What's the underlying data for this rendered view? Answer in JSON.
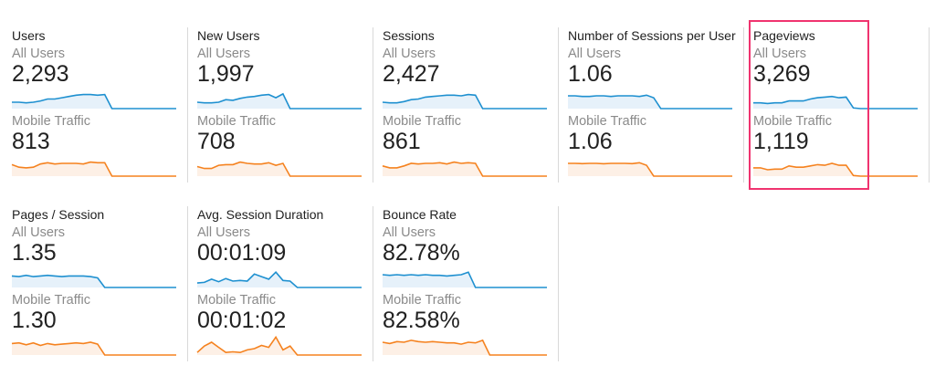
{
  "segments": {
    "all": "All Users",
    "mobile": "Mobile Traffic"
  },
  "colors": {
    "all_line": "#1e90d0",
    "all_fill": "#e6f1fa",
    "mobile_line": "#f5821f",
    "mobile_fill": "#fdf0e6",
    "highlight": "#f0336f"
  },
  "highlighted_metric": "Pageviews",
  "metrics": [
    {
      "title": "Users",
      "all": "2,293",
      "mobile": "813",
      "spark_all": [
        0.5,
        0.5,
        0.45,
        0.5,
        0.6,
        0.75,
        0.75,
        0.85,
        0.95,
        1.05,
        1.1,
        1.1,
        1.05,
        1.1,
        0,
        0,
        0,
        0,
        0,
        0,
        0,
        0,
        0,
        0
      ],
      "spark_mobile": [
        0.9,
        0.7,
        0.65,
        0.7,
        0.95,
        1.05,
        0.95,
        1.0,
        1.0,
        1.0,
        0.95,
        1.1,
        1.05,
        1.05,
        0,
        0,
        0,
        0,
        0,
        0,
        0,
        0,
        0,
        0
      ]
    },
    {
      "title": "New Users",
      "all": "1,997",
      "mobile": "708",
      "spark_all": [
        0.5,
        0.45,
        0.45,
        0.5,
        0.7,
        0.65,
        0.8,
        0.9,
        0.95,
        1.05,
        1.1,
        0.85,
        1.15,
        0,
        0,
        0,
        0,
        0,
        0,
        0,
        0,
        0,
        0,
        0
      ],
      "spark_mobile": [
        0.75,
        0.6,
        0.6,
        0.85,
        0.9,
        0.9,
        1.1,
        1.0,
        0.95,
        0.95,
        1.05,
        0.85,
        1.0,
        0,
        0,
        0,
        0,
        0,
        0,
        0,
        0,
        0,
        0,
        0
      ]
    },
    {
      "title": "Sessions",
      "all": "2,427",
      "mobile": "861",
      "spark_all": [
        0.5,
        0.45,
        0.45,
        0.55,
        0.7,
        0.75,
        0.9,
        0.95,
        1.0,
        1.05,
        1.05,
        1.0,
        1.1,
        1.05,
        0,
        0,
        0,
        0,
        0,
        0,
        0,
        0,
        0,
        0
      ],
      "spark_mobile": [
        0.8,
        0.65,
        0.65,
        0.8,
        1.0,
        0.95,
        1.0,
        1.0,
        1.05,
        0.95,
        1.1,
        1.0,
        1.05,
        1.0,
        0,
        0,
        0,
        0,
        0,
        0,
        0,
        0,
        0,
        0
      ]
    },
    {
      "title": "Number of Sessions per User",
      "all": "1.06",
      "mobile": "1.06",
      "spark_all": [
        1.0,
        1.0,
        0.95,
        0.95,
        1.0,
        1.0,
        0.95,
        1.0,
        1.0,
        1.0,
        0.95,
        1.05,
        0.85,
        0,
        0,
        0,
        0,
        0,
        0,
        0,
        0,
        0,
        0,
        0
      ],
      "spark_mobile": [
        1.0,
        1.0,
        0.98,
        1.0,
        1.0,
        0.97,
        1.0,
        1.0,
        1.0,
        0.98,
        1.05,
        0.85,
        0,
        0,
        0,
        0,
        0,
        0,
        0,
        0,
        0,
        0,
        0,
        0
      ]
    },
    {
      "title": "Pageviews",
      "all": "3,269",
      "mobile": "1,119",
      "spark_all": [
        0.45,
        0.45,
        0.4,
        0.45,
        0.45,
        0.6,
        0.6,
        0.6,
        0.75,
        0.85,
        0.9,
        0.95,
        0.85,
        0.9,
        0.05,
        0,
        0,
        0,
        0,
        0,
        0,
        0,
        0,
        0
      ],
      "spark_mobile": [
        0.65,
        0.65,
        0.5,
        0.55,
        0.55,
        0.8,
        0.7,
        0.7,
        0.8,
        0.9,
        0.85,
        1.0,
        0.85,
        0.85,
        0.05,
        0,
        0,
        0,
        0,
        0,
        0,
        0,
        0,
        0
      ]
    },
    {
      "title": "Pages / Session",
      "all": "1.35",
      "mobile": "1.30",
      "spark_all": [
        0.9,
        0.85,
        0.95,
        0.85,
        0.9,
        0.95,
        0.9,
        0.85,
        0.9,
        0.9,
        0.9,
        0.85,
        0.75,
        0,
        0,
        0,
        0,
        0,
        0,
        0,
        0,
        0,
        0,
        0
      ],
      "spark_mobile": [
        0.9,
        0.95,
        0.8,
        0.95,
        0.75,
        0.9,
        0.8,
        0.85,
        0.9,
        0.95,
        0.9,
        1.0,
        0.85,
        0,
        0,
        0,
        0,
        0,
        0,
        0,
        0,
        0,
        0,
        0
      ]
    },
    {
      "title": "Avg. Session Duration",
      "all": "00:01:09",
      "mobile": "00:01:02",
      "spark_all": [
        0.35,
        0.4,
        0.65,
        0.45,
        0.7,
        0.5,
        0.55,
        0.5,
        1.05,
        0.85,
        0.65,
        1.2,
        0.55,
        0.5,
        0,
        0,
        0,
        0,
        0,
        0,
        0,
        0,
        0,
        0
      ],
      "spark_mobile": [
        0.2,
        0.7,
        1.0,
        0.6,
        0.2,
        0.25,
        0.2,
        0.4,
        0.5,
        0.75,
        0.6,
        1.4,
        0.4,
        0.7,
        0,
        0,
        0,
        0,
        0,
        0,
        0,
        0,
        0,
        0
      ]
    },
    {
      "title": "Bounce Rate",
      "all": "82.78%",
      "mobile": "82.58%",
      "spark_all": [
        1.0,
        0.95,
        1.0,
        0.95,
        1.0,
        0.95,
        1.0,
        0.95,
        0.95,
        0.9,
        0.95,
        1.0,
        1.2,
        0,
        0,
        0,
        0,
        0,
        0,
        0,
        0,
        0,
        0,
        0
      ],
      "spark_mobile": [
        1.0,
        0.9,
        1.05,
        1.0,
        1.15,
        1.05,
        1.0,
        1.05,
        1.0,
        0.95,
        0.95,
        0.85,
        1.0,
        0.95,
        1.15,
        0,
        0,
        0,
        0,
        0,
        0,
        0,
        0,
        0
      ]
    }
  ]
}
